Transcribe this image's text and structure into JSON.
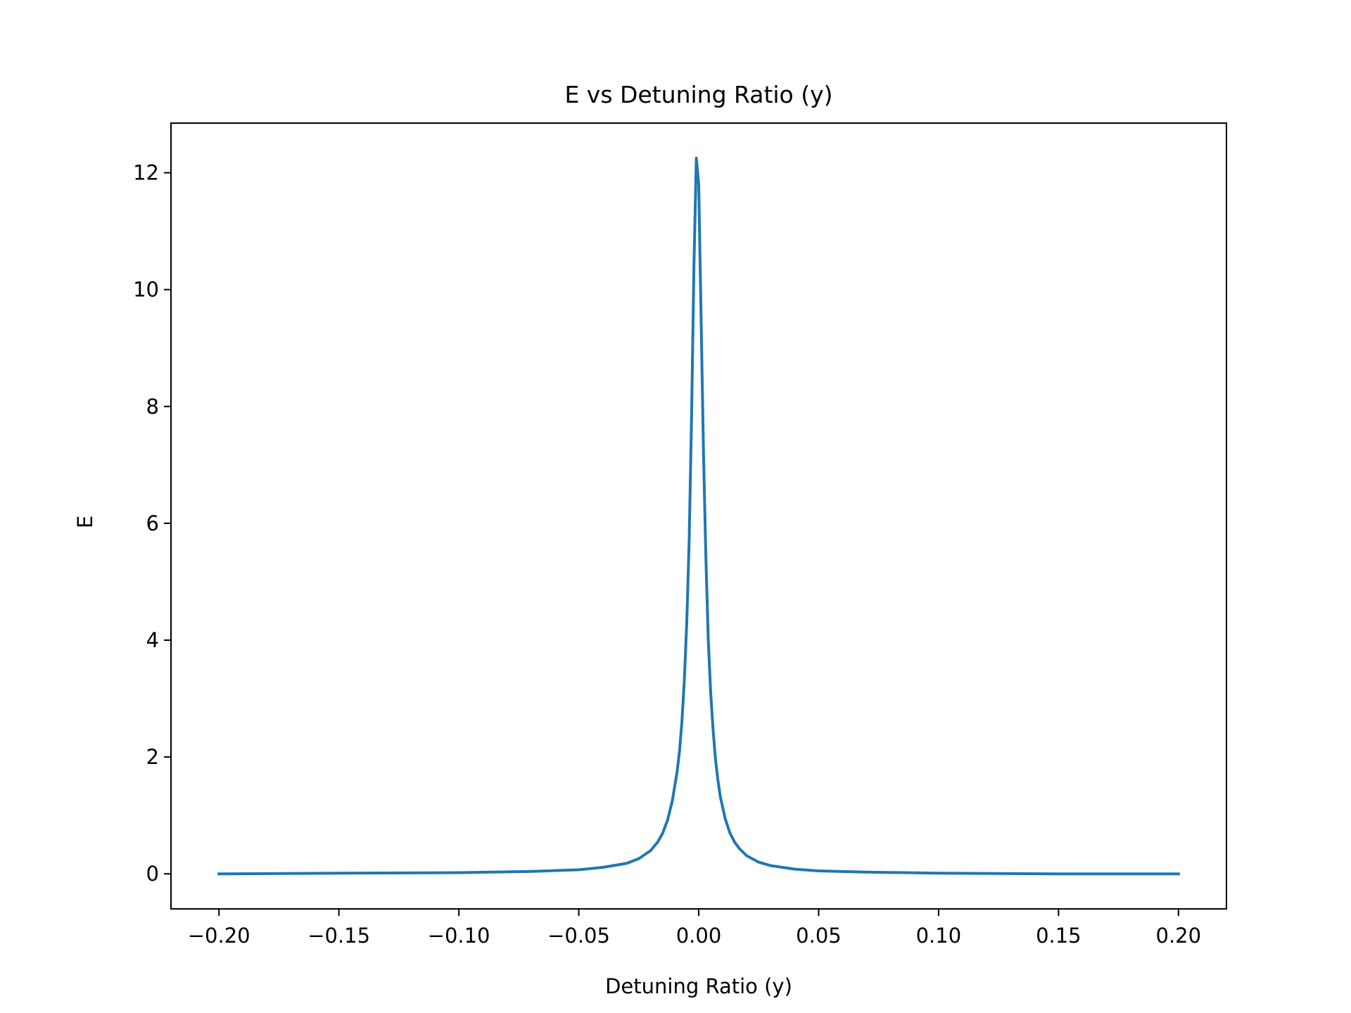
{
  "chart_data": {
    "type": "line",
    "title": "E vs Detuning Ratio (y)",
    "xlabel": "Detuning Ratio (y)",
    "ylabel": "E",
    "xlim": [
      -0.22,
      0.22
    ],
    "ylim": [
      -0.6,
      12.85
    ],
    "xticks": [
      -0.2,
      -0.15,
      -0.1,
      -0.05,
      0.0,
      0.05,
      0.1,
      0.15,
      0.2
    ],
    "xtick_labels": [
      "−0.20",
      "−0.15",
      "−0.10",
      "−0.05",
      "0.00",
      "0.05",
      "0.10",
      "0.15",
      "0.20"
    ],
    "yticks": [
      0,
      2,
      4,
      6,
      8,
      10,
      12
    ],
    "ytick_labels": [
      "0",
      "2",
      "4",
      "6",
      "8",
      "10",
      "12"
    ],
    "grid": false,
    "series": [
      {
        "color": "#1f77b4",
        "x": [
          -0.2,
          -0.15,
          -0.1,
          -0.07,
          -0.05,
          -0.04,
          -0.03,
          -0.025,
          -0.02,
          -0.017,
          -0.015,
          -0.013,
          -0.011,
          -0.009,
          -0.008,
          -0.007,
          -0.006,
          -0.005,
          -0.004,
          -0.003,
          -0.002,
          -0.001,
          0.0,
          0.001,
          0.002,
          0.003,
          0.004,
          0.005,
          0.006,
          0.007,
          0.008,
          0.009,
          0.011,
          0.013,
          0.015,
          0.017,
          0.02,
          0.025,
          0.03,
          0.04,
          0.05,
          0.07,
          0.1,
          0.15,
          0.2
        ],
        "y": [
          0.0,
          0.01,
          0.02,
          0.04,
          0.07,
          0.11,
          0.18,
          0.26,
          0.4,
          0.55,
          0.7,
          0.92,
          1.25,
          1.75,
          2.1,
          2.6,
          3.3,
          4.3,
          5.7,
          7.8,
          10.4,
          12.25,
          11.8,
          9.5,
          7.2,
          5.4,
          4.0,
          3.1,
          2.45,
          1.95,
          1.6,
          1.32,
          0.95,
          0.7,
          0.54,
          0.43,
          0.31,
          0.2,
          0.14,
          0.08,
          0.05,
          0.03,
          0.01,
          0.0,
          0.0
        ]
      }
    ]
  }
}
